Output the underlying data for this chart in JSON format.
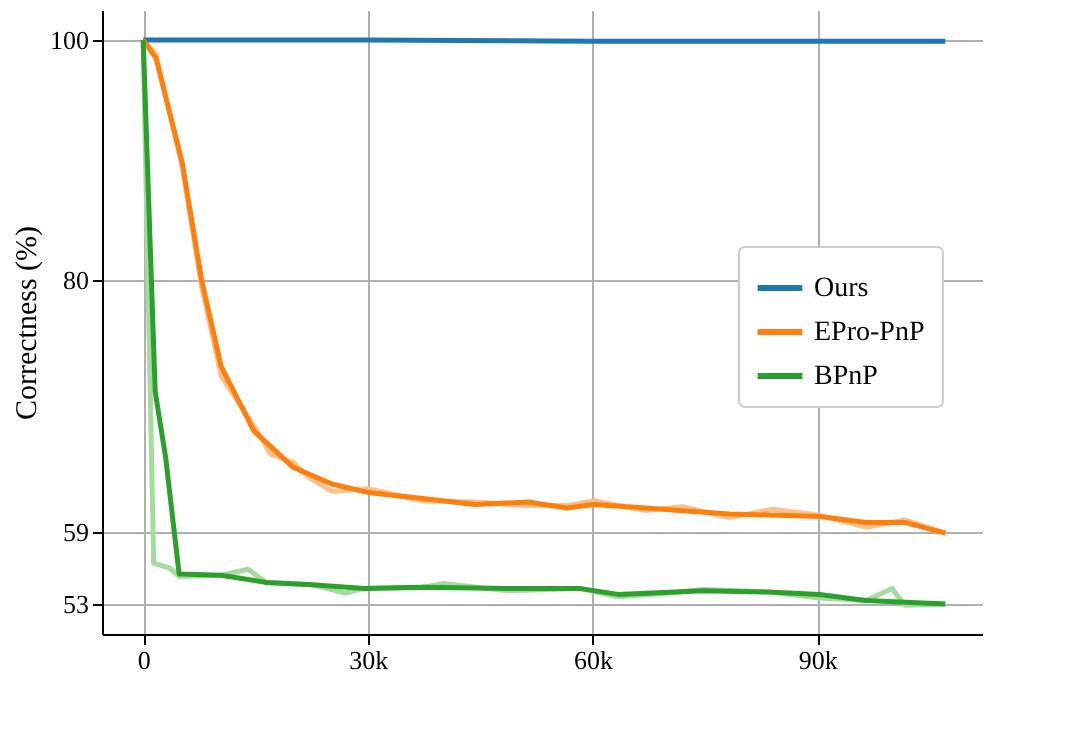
{
  "chart_data": {
    "type": "line",
    "ylabel": "Correctness (%)",
    "xlim": [
      -5500,
      112000
    ],
    "ylim": [
      50.5,
      102.5
    ],
    "xticks": [
      0,
      {
        "value": 30000,
        "label": "30k"
      },
      {
        "value": 60000,
        "label": "60k"
      },
      {
        "value": 90000,
        "label": "90k"
      }
    ],
    "yticks": [
      53,
      59,
      80,
      100
    ],
    "grid": true,
    "legend": "right",
    "line_style": "solid",
    "marker": "none",
    "series": [
      {
        "color": "#ffc08c",
        "x": [
          0,
          1700,
          5200,
          7800,
          10400,
          12000,
          14800,
          17000,
          20000,
          22000,
          25200,
          30000,
          37300,
          44300,
          51400,
          56600,
          60200,
          67000,
          72000,
          78300,
          84000,
          90300,
          96500,
          101700,
          107100
        ],
        "values": [
          100,
          98.8,
          89.5,
          79.5,
          72,
          70.5,
          67.8,
          65.5,
          64.8,
          63.6,
          62.4,
          62.6,
          61.6,
          61.5,
          61.2,
          61.2,
          61.6,
          60.8,
          61.1,
          60.2,
          60.9,
          60.4,
          59.4,
          60,
          58.9
        ]
      },
      {
        "color": "#a6dba0",
        "x": [
          0,
          1400,
          3500,
          4800,
          10400,
          14000,
          16400,
          22600,
          27000,
          29500,
          37300,
          40000,
          48700,
          58200,
          63400,
          70000,
          74800,
          83500,
          90300,
          96500,
          100000,
          101700,
          107100
        ],
        "values": [
          100,
          56.4,
          56,
          55.3,
          55.4,
          55.9,
          54.8,
          54.6,
          53.9,
          54.3,
          54.4,
          54.7,
          54.1,
          54.3,
          53.6,
          53.9,
          54.2,
          54,
          53.5,
          53.3,
          54.3,
          52.9,
          53
        ]
      },
      {
        "name": "Ours",
        "color": "#1f77b4",
        "x": [
          0,
          30000,
          60000,
          107100
        ],
        "values": [
          100,
          100,
          99.9,
          99.9
        ]
      },
      {
        "name": "EPro-PnP",
        "color": "#ff7f0e",
        "x": [
          0,
          1700,
          5200,
          7800,
          10400,
          14800,
          20000,
          25200,
          30000,
          37300,
          44300,
          51400,
          56600,
          60200,
          67000,
          78300,
          90300,
          96500,
          101700,
          107100
        ],
        "values": [
          100,
          98.5,
          89.8,
          80,
          72.8,
          67.4,
          64.4,
          63,
          62.3,
          61.8,
          61.3,
          61.5,
          61,
          61.3,
          61,
          60.5,
          60.3,
          59.8,
          59.8,
          58.9
        ]
      },
      {
        "name": "BPnP",
        "color": "#2ca02c",
        "x": [
          0,
          1600,
          3000,
          4800,
          10400,
          16400,
          22600,
          29500,
          37300,
          48700,
          58200,
          63400,
          74800,
          83500,
          90300,
          96500,
          107100
        ],
        "values": [
          100,
          70.7,
          65.2,
          55.5,
          55.4,
          54.8,
          54.6,
          54.3,
          54.4,
          54.3,
          54.3,
          53.8,
          54.1,
          54,
          53.8,
          53.3,
          53
        ]
      }
    ]
  }
}
